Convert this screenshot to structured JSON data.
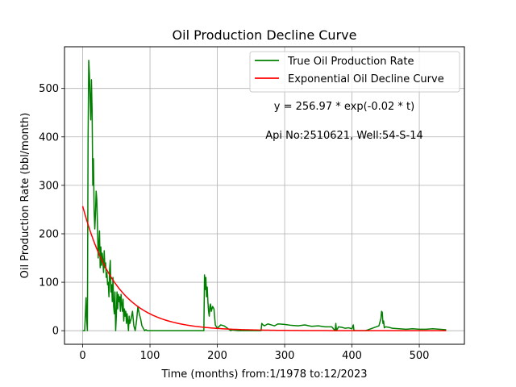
{
  "chart_data": {
    "type": "line",
    "title": "Oil Production Decline Curve",
    "xlabel": "Time (months) from:1/1978 to:12/2023",
    "ylabel": "Oil Production Rate (bbl/month)",
    "xlim": [
      -27,
      567
    ],
    "ylim": [
      -28,
      586
    ],
    "xticks": [
      0,
      100,
      200,
      300,
      400,
      500
    ],
    "yticks": [
      0,
      100,
      200,
      300,
      400,
      500
    ],
    "grid": true,
    "legend_position": "top-right",
    "annotations": [
      "y = 256.97 * exp(-0.02 * t)",
      "Api No:2510621, Well:54-S-14"
    ],
    "fit": {
      "a": 256.97,
      "b": 0.02,
      "t_min": 0,
      "t_max": 540
    },
    "series": [
      {
        "name": "True Oil Production Rate",
        "color": "#008000",
        "x": [
          0,
          3,
          5,
          6,
          7,
          8,
          9,
          10,
          11,
          12,
          13,
          14,
          15,
          16,
          17,
          18,
          19,
          20,
          21,
          22,
          23,
          24,
          25,
          26,
          27,
          28,
          29,
          30,
          31,
          32,
          33,
          34,
          35,
          36,
          37,
          38,
          39,
          40,
          41,
          42,
          43,
          44,
          45,
          46,
          47,
          48,
          49,
          50,
          51,
          52,
          53,
          54,
          55,
          56,
          57,
          58,
          59,
          60,
          61,
          62,
          63,
          64,
          65,
          66,
          67,
          68,
          69,
          70,
          72,
          74,
          76,
          78,
          80,
          82,
          84,
          86,
          88,
          90,
          92,
          94,
          96,
          98,
          100,
          102,
          106,
          110,
          120,
          140,
          160,
          180,
          181,
          182,
          183,
          184,
          185,
          186,
          187,
          188,
          189,
          190,
          191,
          192,
          193,
          195,
          197,
          200,
          205,
          210,
          215,
          220,
          222,
          225,
          230,
          240,
          250,
          260,
          265,
          266,
          268,
          270,
          275,
          280,
          285,
          290,
          300,
          310,
          320,
          330,
          340,
          350,
          360,
          370,
          375,
          376,
          377,
          380,
          385,
          390,
          395,
          400,
          402,
          403,
          404,
          405,
          410,
          420,
          430,
          440,
          443,
          444,
          445,
          446,
          447,
          448,
          450,
          455,
          460,
          470,
          480,
          490,
          500,
          510,
          520,
          530,
          540
        ],
        "y": [
          0,
          0,
          68,
          20,
          0,
          390,
          558,
          530,
          480,
          435,
          518,
          455,
          300,
          355,
          250,
          210,
          240,
          288,
          270,
          215,
          150,
          178,
          206,
          130,
          173,
          135,
          160,
          145,
          120,
          165,
          130,
          140,
          110,
          120,
          95,
          100,
          70,
          125,
          145,
          80,
          95,
          60,
          110,
          50,
          35,
          80,
          0,
          30,
          80,
          45,
          75,
          60,
          70,
          40,
          75,
          55,
          40,
          65,
          20,
          45,
          30,
          40,
          15,
          35,
          20,
          0,
          30,
          15,
          25,
          40,
          10,
          0,
          20,
          50,
          35,
          25,
          10,
          5,
          0,
          2,
          0,
          0,
          0,
          0,
          0,
          0,
          0,
          0,
          0,
          0,
          115,
          85,
          110,
          70,
          90,
          60,
          40,
          30,
          50,
          55,
          40,
          45,
          50,
          45,
          12,
          5,
          12,
          10,
          5,
          0,
          2,
          1,
          0,
          0,
          0,
          0,
          0,
          15,
          12,
          10,
          14,
          12,
          10,
          14,
          13,
          11,
          10,
          12,
          9,
          10,
          8,
          8,
          0,
          15,
          0,
          8,
          7,
          5,
          6,
          4,
          12,
          0,
          0,
          0,
          0,
          0,
          5,
          10,
          25,
          40,
          38,
          15,
          20,
          6,
          8,
          7,
          5,
          4,
          3,
          4,
          3,
          3,
          4,
          3,
          2
        ]
      },
      {
        "name": "Exponential Oil Decline Curve",
        "color": "#ff0000"
      }
    ]
  }
}
